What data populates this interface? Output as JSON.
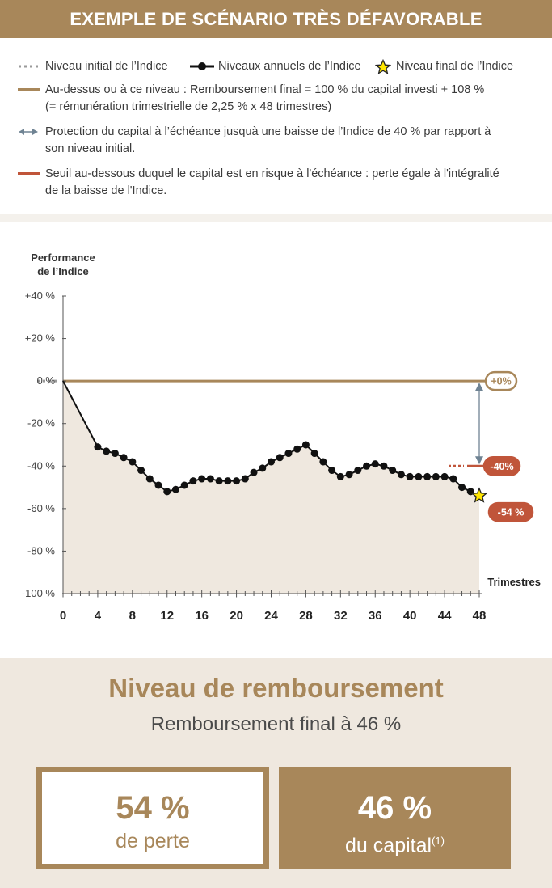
{
  "header": {
    "title": "EXEMPLE DE SCÉNARIO TRÈS DÉFAVORABLE"
  },
  "legend": {
    "initial_level": "Niveau initial de l’Indice",
    "annual_levels": "Niveaux annuels de l’Indice",
    "final_level": "Niveau final de l’Indice",
    "threshold_line1": "Au-dessus ou à ce niveau : Remboursement final = 100 % du capital investi + 108 %",
    "threshold_line2": "(= rémunération trimestrielle de 2,25 % x 48 trimestres)",
    "protection_line1": "Protection du capital à l’échéance jusquà une baisse de l’Indice de 40 % par rapport à",
    "protection_line2": "son niveau initial.",
    "risk_line1": "Seuil au-dessous duquel le capital est en risque à l'échéance : perte égale à l'intégralité",
    "risk_line2": "de la baisse de l'Indice."
  },
  "colors": {
    "brand": "#a8875a",
    "risk": "#c0553a",
    "protection_arrow": "#6f8393",
    "area_fill": "#efe8df",
    "star": "#ffe600"
  },
  "chart_data": {
    "type": "line",
    "ylabel_line1": "Performance",
    "ylabel_line2": "de l’Indice",
    "xlabel": "Trimestres",
    "ylim": [
      -100,
      40
    ],
    "xlim": [
      0,
      48
    ],
    "y_ticks": [
      {
        "value": 40,
        "label": "+40 %"
      },
      {
        "value": 20,
        "label": "+20 %"
      },
      {
        "value": 0,
        "label": "0 %"
      },
      {
        "value": -20,
        "label": "-20 %"
      },
      {
        "value": -40,
        "label": "-40 %"
      },
      {
        "value": -60,
        "label": "-60 %"
      },
      {
        "value": -80,
        "label": "-80 %"
      },
      {
        "value": -100,
        "label": "-100 %"
      }
    ],
    "x_tick_labels": [
      0,
      4,
      8,
      12,
      16,
      20,
      24,
      28,
      32,
      36,
      40,
      44,
      48
    ],
    "series": [
      {
        "x": [
          0,
          4,
          5,
          6,
          7,
          8,
          9,
          10,
          11,
          12,
          13,
          14,
          15,
          16,
          17,
          18,
          19,
          20,
          21,
          22,
          23,
          24,
          25,
          26,
          27,
          28,
          29,
          30,
          31,
          32,
          33,
          34,
          35,
          36,
          37,
          38,
          39,
          40,
          41,
          42,
          43,
          44,
          45,
          46,
          47,
          48
        ],
        "y": [
          0,
          -31,
          -33,
          -34,
          -36,
          -38,
          -42,
          -46,
          -49,
          -52,
          -51,
          -49,
          -47,
          -46,
          -46,
          -47,
          -47,
          -47,
          -46,
          -43,
          -41,
          -38,
          -36,
          -34,
          -32,
          -30,
          -34,
          -38,
          -42,
          -45,
          -44,
          -42,
          -40,
          -39,
          -40,
          -42,
          -44,
          -45,
          -45,
          -45,
          -45,
          -45,
          -46,
          -50,
          -52,
          -54
        ]
      }
    ],
    "reference_lines": [
      {
        "value": 0,
        "badge": "+0%"
      },
      {
        "value": -40,
        "badge": "-40%"
      }
    ],
    "final_badge": "-54 %"
  },
  "result": {
    "title": "Niveau de remboursement",
    "subtitle": "Remboursement final à 46 %",
    "loss_pct": "54 %",
    "loss_label": "de perte",
    "capital_pct": "46 %",
    "capital_label": "du capital",
    "capital_footnote": "(1)"
  }
}
